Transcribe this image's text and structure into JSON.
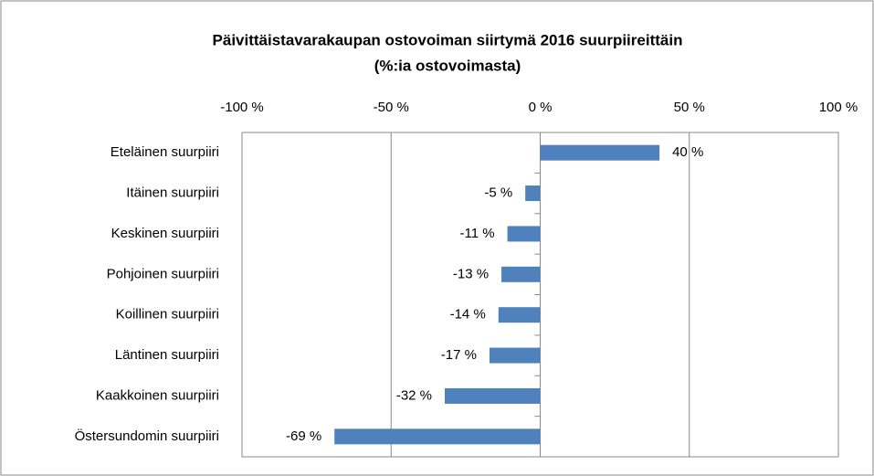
{
  "chart_data": {
    "type": "bar",
    "orientation": "horizontal",
    "title": "Päivittäistavarakaupan  ostovoiman siirtymä 2016 suurpiireittäin",
    "subtitle": "(%:ia ostovoimasta)",
    "categories": [
      "Eteläinen suurpiiri",
      "Itäinen suurpiiri",
      "Keskinen suurpiiri",
      "Pohjoinen suurpiiri",
      "Koillinen suurpiiri",
      "Läntinen suurpiiri",
      "Kaakkoinen suurpiiri",
      "Östersundomin suurpiiri"
    ],
    "values": [
      40,
      -5,
      -11,
      -13,
      -14,
      -17,
      -32,
      -69
    ],
    "value_labels": [
      "40 %",
      "-5 %",
      "-11 %",
      "-13 %",
      "-14 %",
      "-17 %",
      "-32 %",
      "-69 %"
    ],
    "color": "#4f81bd",
    "xlim": [
      -100,
      100
    ],
    "xticks": [
      {
        "value": -100,
        "label": "-100 %"
      },
      {
        "value": -50,
        "label": "-50 %"
      },
      {
        "value": 0,
        "label": "0 %"
      },
      {
        "value": 50,
        "label": "50 %"
      },
      {
        "value": 100,
        "label": "100 %"
      }
    ],
    "grid": true
  }
}
